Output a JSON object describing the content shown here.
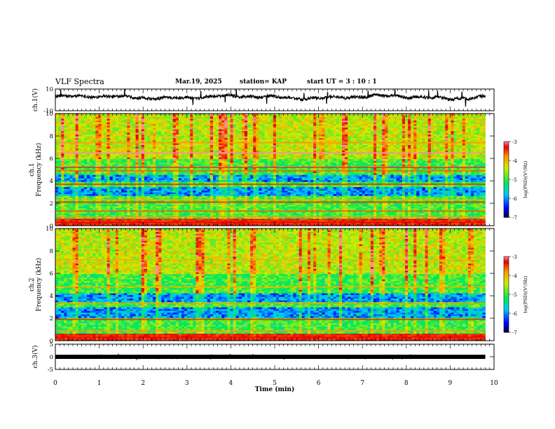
{
  "header": {
    "title": "VLF Spectra",
    "date": "Mar.19, 2025",
    "station": "station= KAP",
    "start": "start  UT  =   3  : 10 : 1"
  },
  "chart_data": [
    {
      "type": "line",
      "name": "ch1-waveform",
      "ylabel": "ch.1(V)",
      "ylim": [
        -10,
        10
      ],
      "y_ticks": [
        "10",
        "-10"
      ],
      "x_range_min": [
        0,
        9.8
      ],
      "mean_level_V": 2.5,
      "amplitude_V": 5
    },
    {
      "type": "heatmap",
      "name": "ch1-spectrogram",
      "ylabel": "ch.1\nFrequency (kHz)",
      "ylim": [
        0,
        10
      ],
      "y_ticks": [
        "0",
        "2",
        "4",
        "6",
        "8",
        "10"
      ],
      "x_range_min": [
        0,
        9.8
      ],
      "bands_kHz": [
        {
          "f": 0.3,
          "level": -3.3
        },
        {
          "f": 0.8,
          "level": -3.8
        },
        {
          "f": 1.3,
          "level": -3.6
        },
        {
          "f": 2.1,
          "level": -3.4
        },
        {
          "f": 2.3,
          "level": -4.0
        },
        {
          "f": 3.7,
          "level": -3.4
        },
        {
          "f": 4.9,
          "level": -3.6
        },
        {
          "f": 5.2,
          "level": -3.2
        },
        {
          "f": 6.5,
          "level": -3.0
        },
        {
          "f": 7.4,
          "level": -3.8
        }
      ],
      "quiet_bands_kHz": [
        [
          2.6,
          3.5
        ],
        [
          3.9,
          4.6
        ]
      ],
      "colorbar": {
        "label": "log(PSD)(V²/Hz)",
        "min": -7,
        "max": -3,
        "ticks": [
          "-3",
          "-4",
          "-5",
          "-6",
          "-7"
        ]
      }
    },
    {
      "type": "heatmap",
      "name": "ch2-spectrogram",
      "ylabel": "ch.2\nFrequency (kHz)",
      "ylim": [
        0,
        10
      ],
      "y_ticks": [
        "0",
        "2",
        "4",
        "6",
        "8",
        "10"
      ],
      "x_range_min": [
        0,
        9.8
      ],
      "bands_kHz": [
        {
          "f": 0.3,
          "level": -3.3
        },
        {
          "f": 0.9,
          "level": -3.8
        },
        {
          "f": 1.9,
          "level": -3.4
        },
        {
          "f": 3.3,
          "level": -3.8
        },
        {
          "f": 4.8,
          "level": -4.0
        },
        {
          "f": 7.2,
          "level": -4.0
        }
      ],
      "quiet_bands_kHz": [
        [
          2.0,
          3.0
        ],
        [
          3.5,
          4.2
        ]
      ],
      "colorbar": {
        "label": "log(PSD)(V²/Hz)",
        "min": -7,
        "max": -3,
        "ticks": [
          "-3",
          "-4",
          "-5",
          "-6",
          "-7"
        ]
      }
    },
    {
      "type": "line",
      "name": "ch3-waveform",
      "ylabel": "ch.3(V)",
      "ylim": [
        -5,
        5
      ],
      "y_ticks": [
        "5",
        "0",
        "-5"
      ],
      "x_range_min": [
        0,
        9.8
      ],
      "mean_level_V": 0,
      "amplitude_V": 0.6
    }
  ],
  "x_axis": {
    "label": "Time (min)",
    "range": [
      0,
      10
    ],
    "ticks": [
      "0",
      "1",
      "2",
      "3",
      "4",
      "5",
      "6",
      "7",
      "8",
      "9",
      "10"
    ]
  }
}
